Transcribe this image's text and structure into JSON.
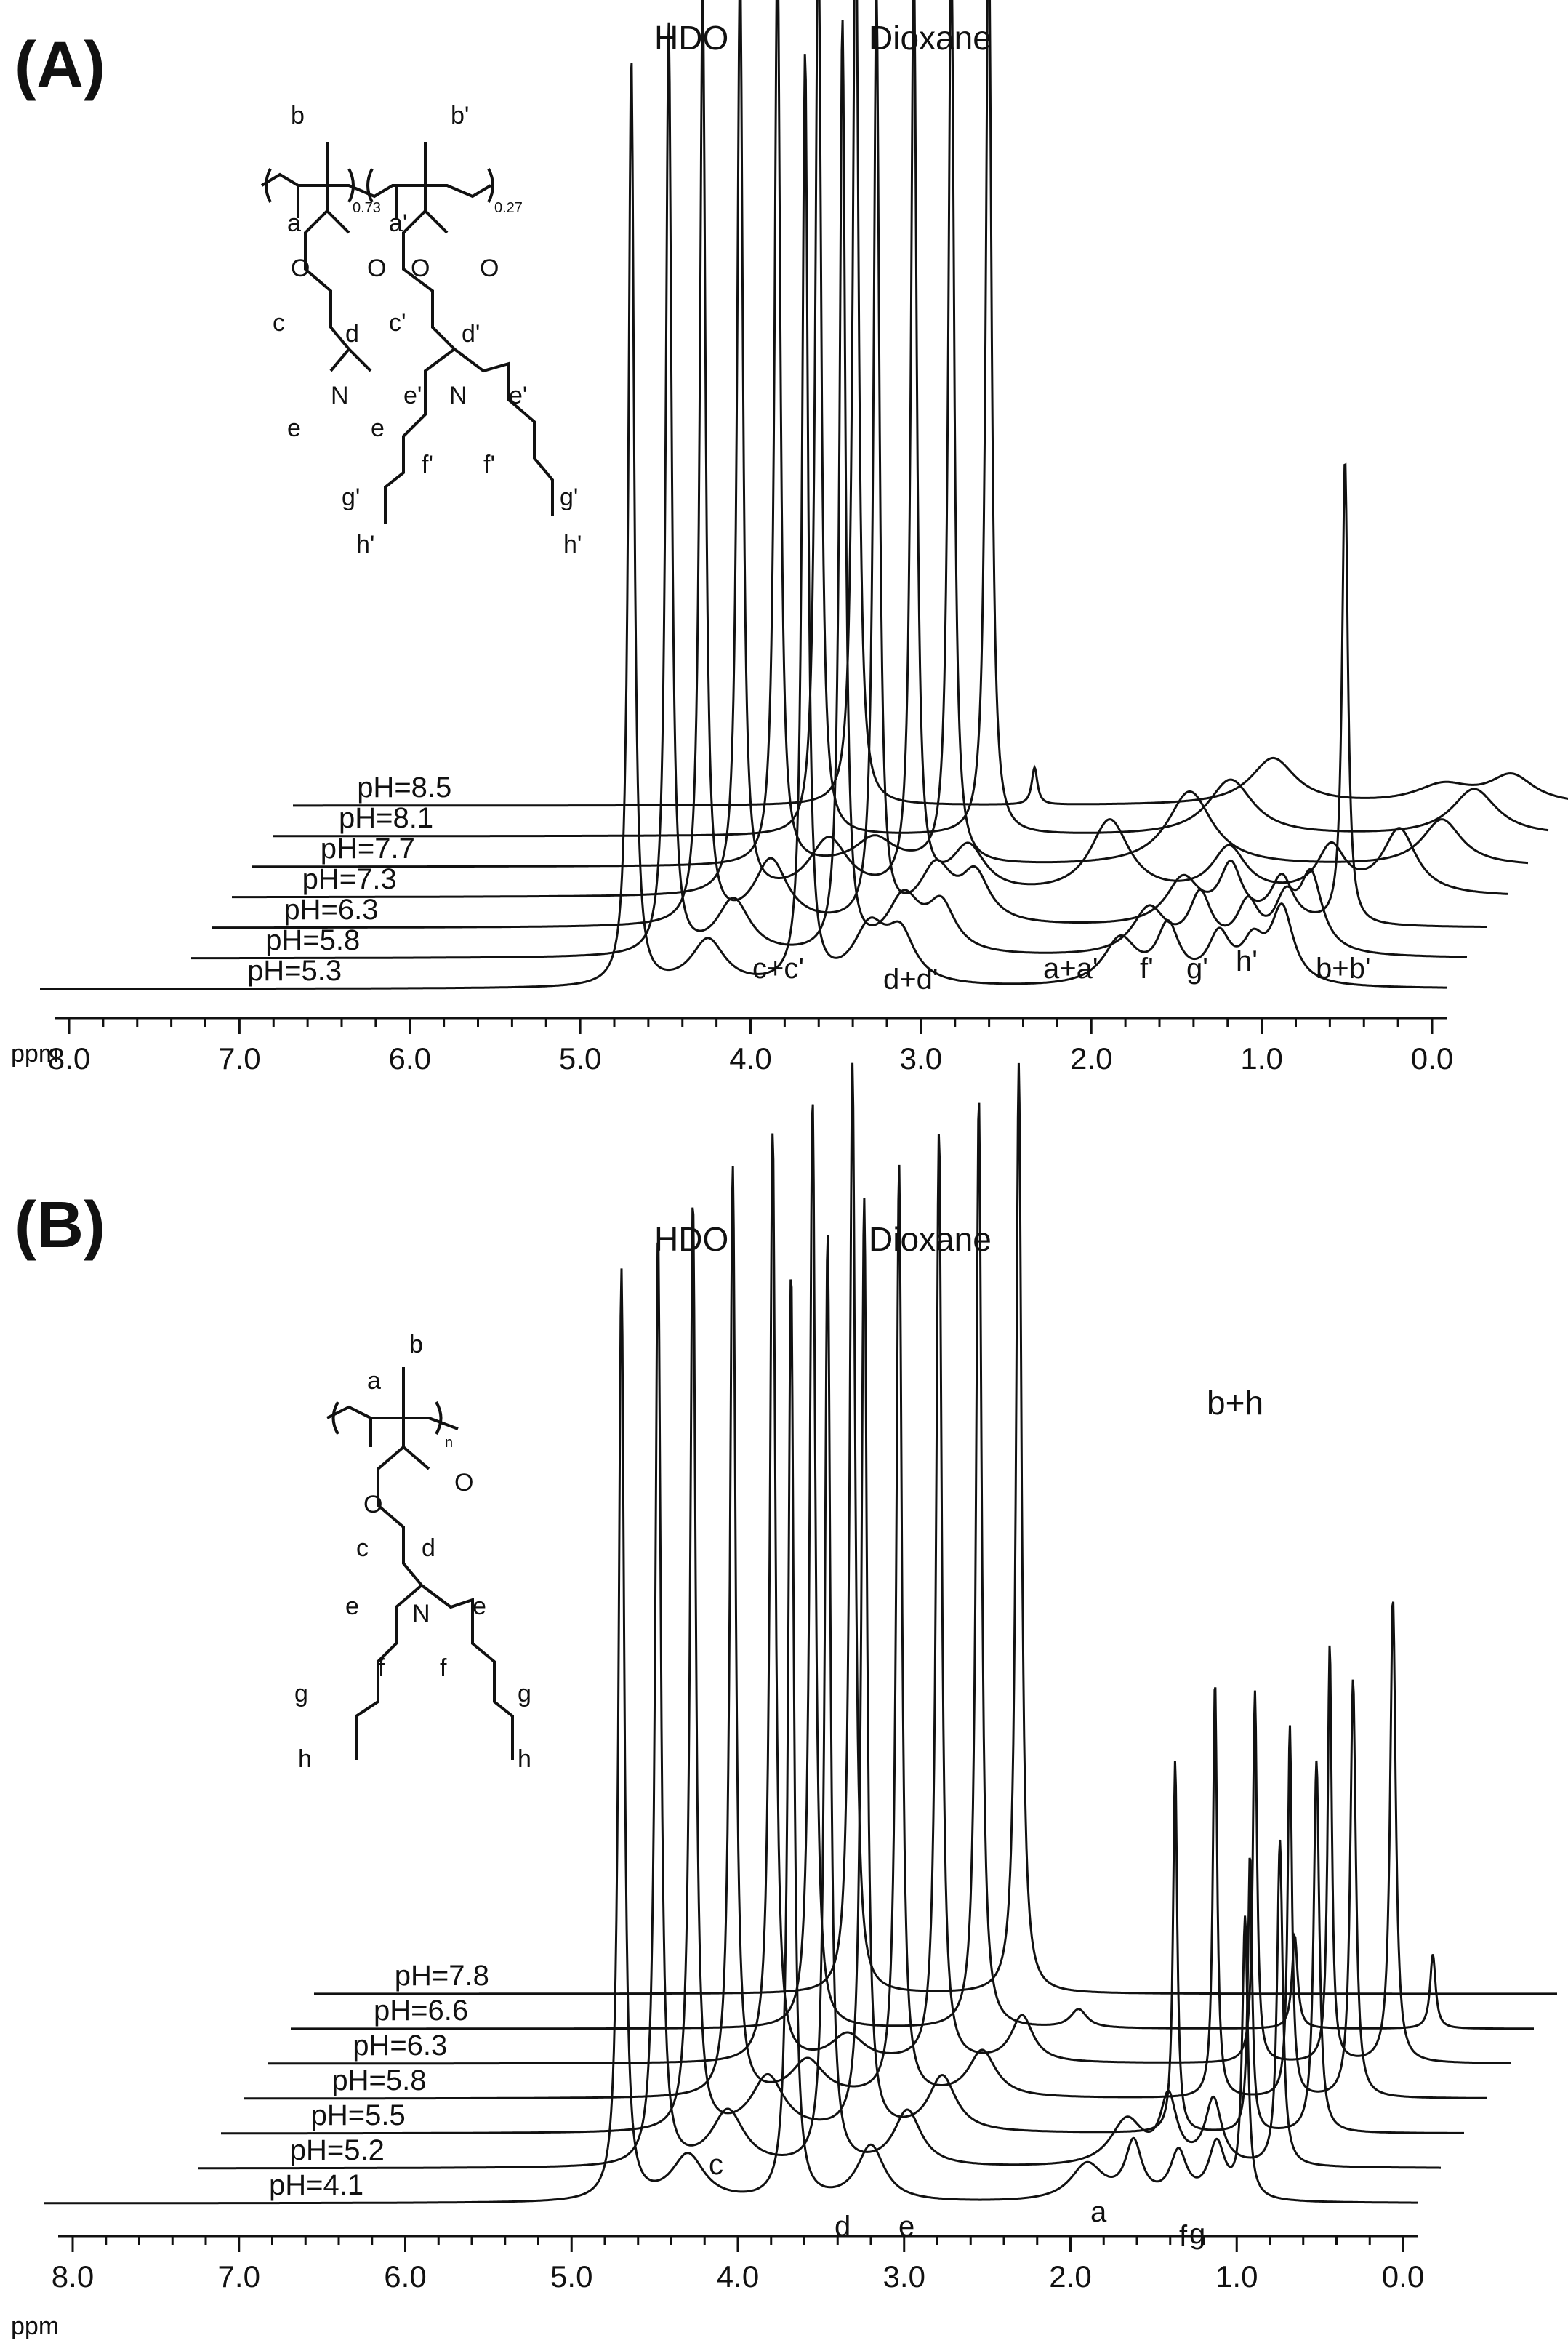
{
  "figure": {
    "panels": [
      {
        "letter": "(A)",
        "top_labels": [
          "HDO",
          "Dioxane"
        ],
        "unit": "ppm",
        "ticks": [
          "8.0",
          "7.0",
          "6.0",
          "5.0",
          "4.0",
          "3.0",
          "2.0",
          "1.0",
          "0.0"
        ],
        "assignments": [
          "c+c'",
          "d+d'",
          "a+a'",
          "f'",
          "g'",
          "h'",
          "b+b'"
        ],
        "structure_labels": [
          "a",
          "b",
          "a'",
          "b'",
          "0.73",
          "0.27",
          "O",
          "O",
          "O",
          "O",
          "c",
          "d",
          "c'",
          "d'",
          "N",
          "N",
          "e",
          "e",
          "e'",
          "e'",
          "f'",
          "f'",
          "g'",
          "g'",
          "h'",
          "h'"
        ]
      },
      {
        "letter": "(B)",
        "top_labels": [
          "HDO",
          "Dioxane",
          "b+h"
        ],
        "unit": "ppm",
        "ticks": [
          "8.0",
          "7.0",
          "6.0",
          "5.0",
          "4.0",
          "3.0",
          "2.0",
          "1.0",
          "0.0"
        ],
        "assignments": [
          "c",
          "d",
          "e",
          "a",
          "f",
          "g"
        ],
        "structure_labels": [
          "a",
          "b",
          "n",
          "O",
          "O",
          "c",
          "d",
          "N",
          "e",
          "e",
          "f",
          "f",
          "g",
          "g",
          "h",
          "h"
        ]
      }
    ]
  },
  "chart_data": [
    {
      "type": "line",
      "title": "(A)",
      "xlabel": "ppm",
      "xlim": [
        8.0,
        0.0
      ],
      "x_reversed": true,
      "series": [
        {
          "name": "pH=5.3",
          "peaks": [
            {
              "ppm": 4.7,
              "height": 1.0,
              "width": 0.02
            },
            {
              "ppm": 4.25,
              "height": 0.05,
              "width": 0.12
            },
            {
              "ppm": 3.68,
              "height": 1.0,
              "width": 0.02
            },
            {
              "ppm": 3.3,
              "height": 0.06,
              "width": 0.12
            },
            {
              "ppm": 3.12,
              "height": 0.05,
              "width": 0.1
            },
            {
              "ppm": 1.83,
              "height": 0.05,
              "width": 0.12
            },
            {
              "ppm": 1.55,
              "height": 0.06,
              "width": 0.08
            },
            {
              "ppm": 1.25,
              "height": 0.05,
              "width": 0.08
            },
            {
              "ppm": 1.05,
              "height": 0.04,
              "width": 0.08
            },
            {
              "ppm": 0.88,
              "height": 0.08,
              "width": 0.08
            }
          ]
        },
        {
          "name": "pH=5.8",
          "peaks": [
            {
              "ppm": 4.6,
              "height": 1.0,
              "width": 0.02
            },
            {
              "ppm": 4.22,
              "height": 0.06,
              "width": 0.12
            },
            {
              "ppm": 3.58,
              "height": 1.0,
              "width": 0.02
            },
            {
              "ppm": 3.22,
              "height": 0.06,
              "width": 0.12
            },
            {
              "ppm": 3.0,
              "height": 0.05,
              "width": 0.1
            },
            {
              "ppm": 1.78,
              "height": 0.05,
              "width": 0.12
            },
            {
              "ppm": 1.48,
              "height": 0.06,
              "width": 0.08
            },
            {
              "ppm": 1.2,
              "height": 0.05,
              "width": 0.08
            },
            {
              "ppm": 0.98,
              "height": 0.05,
              "width": 0.08
            },
            {
              "ppm": 0.83,
              "height": 0.08,
              "width": 0.08
            }
          ]
        },
        {
          "name": "pH=6.3",
          "peaks": [
            {
              "ppm": 4.52,
              "height": 1.0,
              "width": 0.02
            },
            {
              "ppm": 4.12,
              "height": 0.07,
              "width": 0.12
            },
            {
              "ppm": 3.5,
              "height": 1.0,
              "width": 0.02
            },
            {
              "ppm": 3.15,
              "height": 0.06,
              "width": 0.12
            },
            {
              "ppm": 2.92,
              "height": 0.05,
              "width": 0.1
            },
            {
              "ppm": 1.7,
              "height": 0.05,
              "width": 0.12
            },
            {
              "ppm": 1.42,
              "height": 0.06,
              "width": 0.08
            },
            {
              "ppm": 1.12,
              "height": 0.05,
              "width": 0.08
            },
            {
              "ppm": 0.75,
              "height": 0.5,
              "width": 0.02
            }
          ]
        },
        {
          "name": "pH=7.3",
          "peaks": [
            {
              "ppm": 4.42,
              "height": 1.0,
              "width": 0.02
            },
            {
              "ppm": 3.9,
              "height": 0.06,
              "width": 0.14
            },
            {
              "ppm": 3.4,
              "height": 1.0,
              "width": 0.02
            },
            {
              "ppm": 3.08,
              "height": 0.05,
              "width": 0.12
            },
            {
              "ppm": 2.25,
              "height": 0.08,
              "width": 0.14
            },
            {
              "ppm": 1.55,
              "height": 0.05,
              "width": 0.12
            },
            {
              "ppm": 0.95,
              "height": 0.05,
              "width": 0.1
            },
            {
              "ppm": 0.55,
              "height": 0.07,
              "width": 0.12
            }
          ]
        },
        {
          "name": "pH=7.7",
          "peaks": [
            {
              "ppm": 4.32,
              "height": 1.0,
              "width": 0.02
            },
            {
              "ppm": 3.75,
              "height": 0.03,
              "width": 0.14
            },
            {
              "ppm": 3.3,
              "height": 1.0,
              "width": 0.02
            },
            {
              "ppm": 1.9,
              "height": 0.08,
              "width": 0.16
            },
            {
              "ppm": 0.42,
              "height": 0.05,
              "width": 0.14
            }
          ]
        },
        {
          "name": "pH=8.1",
          "peaks": [
            {
              "ppm": 4.2,
              "height": 1.0,
              "width": 0.02
            },
            {
              "ppm": 3.2,
              "height": 1.0,
              "width": 0.02
            },
            {
              "ppm": 1.78,
              "height": 0.06,
              "width": 0.16
            },
            {
              "ppm": 0.35,
              "height": 0.05,
              "width": 0.16
            }
          ]
        },
        {
          "name": "pH=8.5",
          "peaks": [
            {
              "ppm": 4.1,
              "height": 1.0,
              "width": 0.02
            },
            {
              "ppm": 3.05,
              "height": 0.04,
              "width": 0.02
            },
            {
              "ppm": 1.65,
              "height": 0.05,
              "width": 0.16
            },
            {
              "ppm": 0.65,
              "height": 0.02,
              "width": 0.2
            },
            {
              "ppm": 0.25,
              "height": 0.03,
              "width": 0.16
            }
          ]
        }
      ]
    },
    {
      "type": "line",
      "title": "(B)",
      "xlabel": "ppm",
      "xlim": [
        8.0,
        0.0
      ],
      "x_reversed": true,
      "series": [
        {
          "name": "pH=4.1",
          "peaks": [
            {
              "ppm": 4.7,
              "height": 1.0,
              "width": 0.02
            },
            {
              "ppm": 4.3,
              "height": 0.05,
              "width": 0.12
            },
            {
              "ppm": 3.68,
              "height": 1.0,
              "width": 0.02
            },
            {
              "ppm": 3.2,
              "height": 0.06,
              "width": 0.1
            },
            {
              "ppm": 1.9,
              "height": 0.04,
              "width": 0.12
            },
            {
              "ppm": 1.62,
              "height": 0.06,
              "width": 0.06
            },
            {
              "ppm": 1.35,
              "height": 0.05,
              "width": 0.06
            },
            {
              "ppm": 1.12,
              "height": 0.06,
              "width": 0.06
            },
            {
              "ppm": 0.95,
              "height": 0.3,
              "width": 0.02
            }
          ]
        },
        {
          "name": "pH=5.2",
          "peaks": [
            {
              "ppm": 4.62,
              "height": 1.0,
              "width": 0.02
            },
            {
              "ppm": 4.2,
              "height": 0.06,
              "width": 0.12
            },
            {
              "ppm": 3.6,
              "height": 1.0,
              "width": 0.02
            },
            {
              "ppm": 3.12,
              "height": 0.06,
              "width": 0.1
            },
            {
              "ppm": 1.8,
              "height": 0.05,
              "width": 0.12
            },
            {
              "ppm": 1.55,
              "height": 0.07,
              "width": 0.06
            },
            {
              "ppm": 1.28,
              "height": 0.07,
              "width": 0.06
            },
            {
              "ppm": 0.88,
              "height": 0.35,
              "width": 0.02
            }
          ]
        },
        {
          "name": "pH=5.5",
          "peaks": [
            {
              "ppm": 4.55,
              "height": 1.0,
              "width": 0.02
            },
            {
              "ppm": 4.1,
              "height": 0.06,
              "width": 0.12
            },
            {
              "ppm": 3.52,
              "height": 1.0,
              "width": 0.02
            },
            {
              "ppm": 3.05,
              "height": 0.06,
              "width": 0.1
            },
            {
              "ppm": 1.65,
              "height": 0.4,
              "width": 0.015
            },
            {
              "ppm": 1.2,
              "height": 0.3,
              "width": 0.015
            },
            {
              "ppm": 0.8,
              "height": 0.4,
              "width": 0.02
            }
          ]
        },
        {
          "name": "pH=5.8",
          "peaks": [
            {
              "ppm": 4.45,
              "height": 1.0,
              "width": 0.02
            },
            {
              "ppm": 4.0,
              "height": 0.04,
              "width": 0.12
            },
            {
              "ppm": 3.45,
              "height": 1.0,
              "width": 0.02
            },
            {
              "ppm": 2.95,
              "height": 0.05,
              "width": 0.1
            },
            {
              "ppm": 1.55,
              "height": 0.45,
              "width": 0.015
            },
            {
              "ppm": 1.1,
              "height": 0.4,
              "width": 0.015
            },
            {
              "ppm": 0.72,
              "height": 0.45,
              "width": 0.02
            }
          ]
        },
        {
          "name": "pH=6.3",
          "peaks": [
            {
              "ppm": 4.35,
              "height": 1.0,
              "width": 0.02
            },
            {
              "ppm": 3.9,
              "height": 0.03,
              "width": 0.12
            },
            {
              "ppm": 3.35,
              "height": 1.0,
              "width": 0.02
            },
            {
              "ppm": 2.85,
              "height": 0.05,
              "width": 0.08
            },
            {
              "ppm": 1.45,
              "height": 0.4,
              "width": 0.015
            },
            {
              "ppm": 1.0,
              "height": 0.45,
              "width": 0.015
            },
            {
              "ppm": 0.62,
              "height": 0.5,
              "width": 0.02
            }
          ]
        },
        {
          "name": "pH=6.6",
          "peaks": [
            {
              "ppm": 4.25,
              "height": 1.0,
              "width": 0.02
            },
            {
              "ppm": 3.25,
              "height": 1.0,
              "width": 0.02
            },
            {
              "ppm": 2.65,
              "height": 0.02,
              "width": 0.06
            },
            {
              "ppm": 1.35,
              "height": 0.1,
              "width": 0.02
            },
            {
              "ppm": 0.52,
              "height": 0.08,
              "width": 0.02
            }
          ]
        },
        {
          "name": "pH=7.8",
          "peaks": [
            {
              "ppm": 4.15,
              "height": 1.0,
              "width": 0.02
            },
            {
              "ppm": 3.15,
              "height": 1.0,
              "width": 0.02
            }
          ]
        }
      ]
    }
  ]
}
